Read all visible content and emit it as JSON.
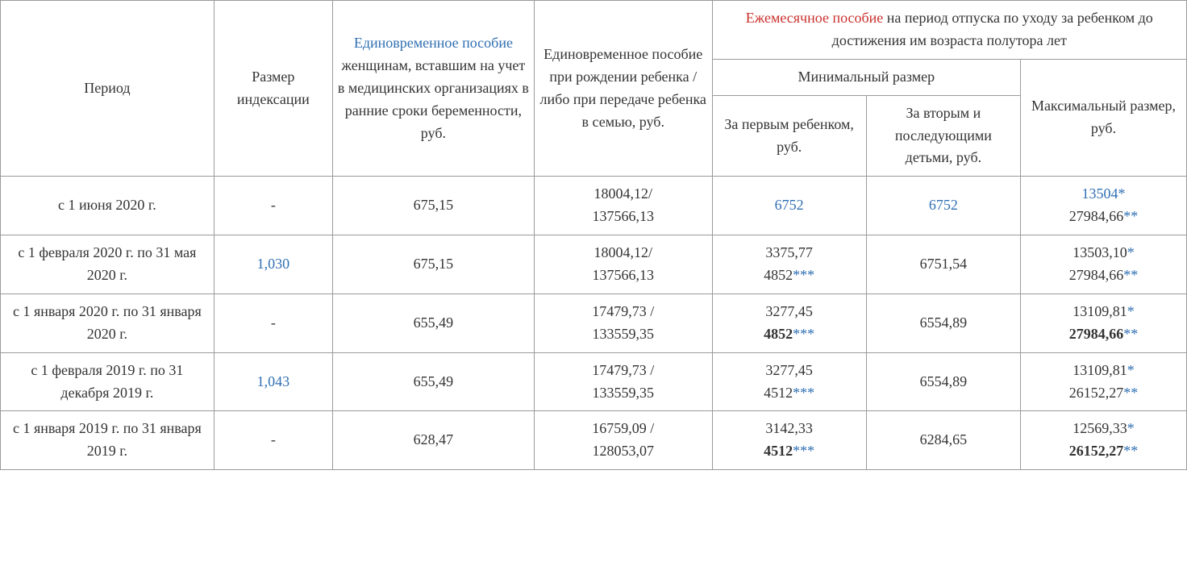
{
  "colors": {
    "text": "#333333",
    "link": "#2f6fb3",
    "red": "#c9302c",
    "border": "#9a9a9a",
    "background": "#ffffff"
  },
  "typography": {
    "font_family": "Georgia, Times New Roman, serif",
    "base_fontsize_pt": 14,
    "line_height": 1.55
  },
  "header": {
    "period": "Период",
    "index_size": "Размер индексации",
    "col3_link": "Единовременное пособие",
    "col3_rest": " женщинам, вставшим на учет в медицинских организациях в ранние сроки беременности, руб.",
    "col4": "Единовременное пособие при рождении ребенка / либо при передаче ребенка в семью, руб.",
    "col5_top_link": "Ежемесячное пособие",
    "col5_top_rest": " на период отпуска по уходу за ребенком до достижения им возраста полутора лет",
    "min_size": "Минимальный размер",
    "max_size": "Максимальный размер, руб.",
    "first_child": "За первым ребенком, руб.",
    "second_child": "За вторым и последующими детьми, руб."
  },
  "rows": [
    {
      "period": "с 1 июня 2020 г.",
      "index": "-",
      "index_is_link": false,
      "col3": "675,15",
      "col4_a": "18004,12/",
      "col4_b": "137566,13",
      "first_a": "6752",
      "first_a_link": true,
      "first_b": "",
      "first_b_bold": false,
      "first_b_stars": "",
      "second": "6752",
      "second_link": true,
      "max_a": "13504",
      "max_a_bold": false,
      "max_a_link": true,
      "max_a_star": "*",
      "max_b": "27984,66",
      "max_b_bold": false,
      "max_b_star": "**"
    },
    {
      "period": "с 1 февраля 2020 г. по 31 мая 2020 г.",
      "index": "1,030",
      "index_is_link": true,
      "col3": "675,15",
      "col4_a": "18004,12/",
      "col4_b": "137566,13",
      "first_a": "3375,77",
      "first_a_link": false,
      "first_b": "4852",
      "first_b_bold": false,
      "first_b_stars": "***",
      "second": "6751,54",
      "second_link": false,
      "max_a": "13503,10",
      "max_a_bold": false,
      "max_a_link": false,
      "max_a_star": "*",
      "max_b": "27984,66",
      "max_b_bold": false,
      "max_b_star": "**"
    },
    {
      "period": "с 1 января 2020 г. по 31 января 2020 г.",
      "index": "-",
      "index_is_link": false,
      "col3": "655,49",
      "col4_a": "17479,73 /",
      "col4_b": "133559,35",
      "first_a": "3277,45",
      "first_a_link": false,
      "first_b": "4852",
      "first_b_bold": true,
      "first_b_stars": "***",
      "second": "6554,89",
      "second_link": false,
      "max_a": "13109,81",
      "max_a_bold": false,
      "max_a_link": false,
      "max_a_star": "*",
      "max_b": "27984,66",
      "max_b_bold": true,
      "max_b_star": "**"
    },
    {
      "period": "с 1 февраля 2019 г. по 31 декабря 2019 г.",
      "index": "1,043",
      "index_is_link": true,
      "col3": "655,49",
      "col4_a": "17479,73 /",
      "col4_b": "133559,35",
      "first_a": "3277,45",
      "first_a_link": false,
      "first_b": "4512",
      "first_b_bold": false,
      "first_b_stars": "***",
      "second": "6554,89",
      "second_link": false,
      "max_a": "13109,81",
      "max_a_bold": false,
      "max_a_link": false,
      "max_a_star": "*",
      "max_b": "26152,27",
      "max_b_bold": false,
      "max_b_star": "**"
    },
    {
      "period": "с 1 января 2019 г. по 31 января 2019 г.",
      "index": "-",
      "index_is_link": false,
      "col3": "628,47",
      "col4_a": "16759,09 /",
      "col4_b": "128053,07",
      "first_a": "3142,33",
      "first_a_link": false,
      "first_b": "4512",
      "first_b_bold": true,
      "first_b_stars": "***",
      "second": "6284,65",
      "second_link": false,
      "max_a": "12569,33",
      "max_a_bold": false,
      "max_a_link": false,
      "max_a_star": "*",
      "max_b": "26152,27",
      "max_b_bold": true,
      "max_b_star": "**"
    }
  ]
}
